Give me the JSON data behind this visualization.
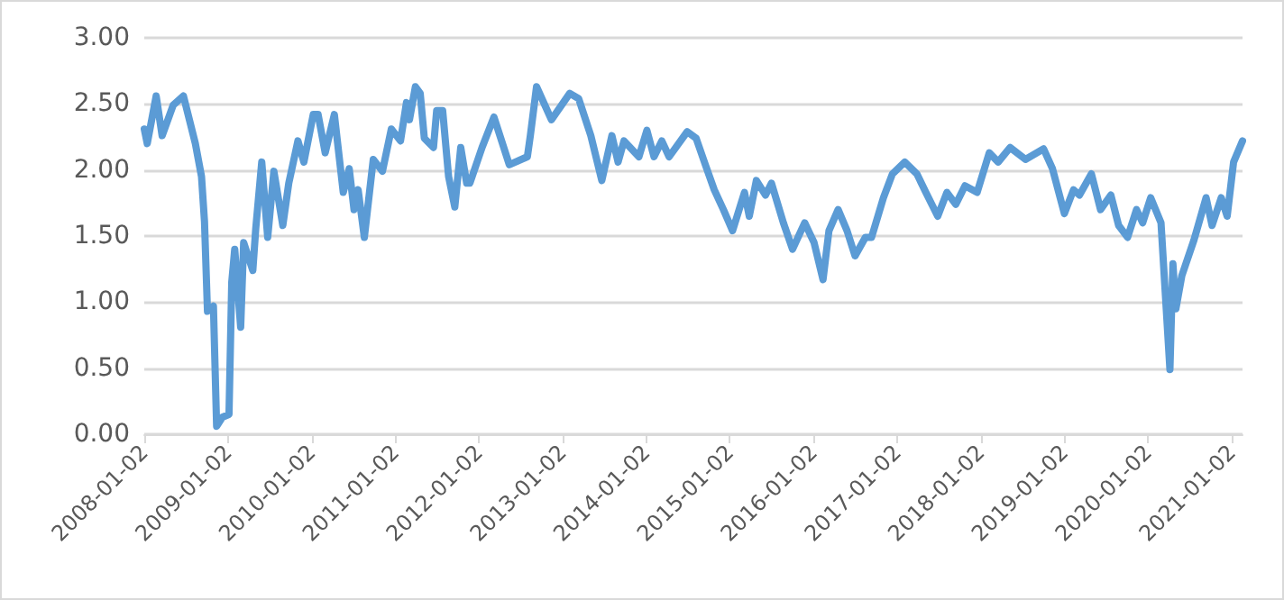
{
  "chart_data": {
    "type": "line",
    "color": "#5b9bd5",
    "line_style": "solid",
    "marker": "none",
    "grid": "y",
    "x": [
      "2008-01-02",
      "2008-01-15",
      "2008-02-23",
      "2008-03-20",
      "2008-05-07",
      "2008-06-21",
      "2008-08-12",
      "2008-09-08",
      "2008-09-21",
      "2008-10-04",
      "2008-10-30",
      "2008-11-13",
      "2008-12-09",
      "2009-01-06",
      "2009-01-18",
      "2009-01-31",
      "2009-02-26",
      "2009-03-11",
      "2009-04-20",
      "2009-05-03",
      "2009-05-29",
      "2009-06-24",
      "2009-07-21",
      "2009-08-29",
      "2009-09-24",
      "2009-11-03",
      "2009-11-29",
      "2010-01-09",
      "2010-01-30",
      "2010-03-02",
      "2010-04-11",
      "2010-05-20",
      "2010-06-15",
      "2010-07-06",
      "2010-07-24",
      "2010-08-20",
      "2010-09-28",
      "2010-11-07",
      "2010-12-16",
      "2011-01-25",
      "2011-02-20",
      "2011-03-05",
      "2011-03-31",
      "2011-04-21",
      "2011-05-09",
      "2011-06-18",
      "2011-07-02",
      "2011-07-28",
      "2011-08-23",
      "2011-09-19",
      "2011-10-15",
      "2011-11-10",
      "2011-11-24",
      "2012-01-16",
      "2012-03-08",
      "2012-05-14",
      "2012-08-01",
      "2012-08-14",
      "2012-09-10",
      "2012-11-14",
      "2013-02-02",
      "2013-03-13",
      "2013-05-05",
      "2013-06-22",
      "2013-08-05",
      "2013-09-01",
      "2013-09-27",
      "2013-12-01",
      "2014-01-05",
      "2014-02-05",
      "2014-03-11",
      "2014-04-12",
      "2014-06-30",
      "2014-08-08",
      "2014-09-17",
      "2014-10-26",
      "2014-12-05",
      "2015-01-14",
      "2015-03-07",
      "2015-03-28",
      "2015-04-28",
      "2015-06-07",
      "2015-07-03",
      "2015-08-24",
      "2015-10-03",
      "2015-11-25",
      "2016-01-05",
      "2016-02-13",
      "2016-03-10",
      "2016-04-19",
      "2016-05-28",
      "2016-07-02",
      "2016-08-16",
      "2016-09-12",
      "2016-11-03",
      "2016-12-12",
      "2017-02-04",
      "2017-03-29",
      "2017-05-07",
      "2017-06-28",
      "2017-08-07",
      "2017-09-15",
      "2017-10-25",
      "2017-12-17",
      "2018-02-08",
      "2018-03-19",
      "2018-05-10",
      "2018-07-16",
      "2018-10-03",
      "2018-11-11",
      "2019-01-02",
      "2019-02-11",
      "2019-03-09",
      "2019-04-30",
      "2019-06-09",
      "2019-07-24",
      "2019-08-27",
      "2019-10-05",
      "2019-11-13",
      "2019-12-10",
      "2020-01-14",
      "2020-02-28",
      "2020-04-07",
      "2020-04-20",
      "2020-05-03",
      "2020-05-29",
      "2020-07-21",
      "2020-09-12",
      "2020-10-08",
      "2020-11-17",
      "2020-12-13",
      "2021-01-10",
      "2021-02-18"
    ],
    "values": [
      2.31,
      2.2,
      2.56,
      2.26,
      2.49,
      2.56,
      2.2,
      1.95,
      1.61,
      0.93,
      0.97,
      0.06,
      0.13,
      0.15,
      1.15,
      1.4,
      0.81,
      1.45,
      1.24,
      1.56,
      2.06,
      1.49,
      1.99,
      1.58,
      1.9,
      2.22,
      2.06,
      2.42,
      2.42,
      2.13,
      2.42,
      1.83,
      2.01,
      1.7,
      1.85,
      1.49,
      2.08,
      1.99,
      2.31,
      2.22,
      2.51,
      2.38,
      2.63,
      2.58,
      2.24,
      2.17,
      2.45,
      2.45,
      1.95,
      1.72,
      2.17,
      1.9,
      1.9,
      2.17,
      2.4,
      2.04,
      2.1,
      2.26,
      2.63,
      2.38,
      2.58,
      2.54,
      2.26,
      1.92,
      2.26,
      2.06,
      2.22,
      2.1,
      2.3,
      2.1,
      2.22,
      2.1,
      2.29,
      2.24,
      2.04,
      1.85,
      1.7,
      1.54,
      1.83,
      1.65,
      1.92,
      1.81,
      1.9,
      1.6,
      1.4,
      1.6,
      1.45,
      1.17,
      1.54,
      1.7,
      1.54,
      1.35,
      1.49,
      1.49,
      1.79,
      1.97,
      2.06,
      1.97,
      1.83,
      1.65,
      1.83,
      1.74,
      1.88,
      1.83,
      2.13,
      2.06,
      2.17,
      2.08,
      2.16,
      2.01,
      1.67,
      1.85,
      1.81,
      1.97,
      1.7,
      1.81,
      1.58,
      1.49,
      1.7,
      1.6,
      1.79,
      1.6,
      0.49,
      1.29,
      0.95,
      1.2,
      1.47,
      1.79,
      1.58,
      1.79,
      1.65,
      2.06,
      2.22
    ],
    "xlim": [
      "2008-01-02",
      "2021-02-18"
    ],
    "xticks": [
      "2008-01-02",
      "2009-01-02",
      "2010-01-02",
      "2011-01-02",
      "2012-01-02",
      "2013-01-02",
      "2014-01-02",
      "2015-01-02",
      "2016-01-02",
      "2017-01-02",
      "2018-01-02",
      "2019-01-02",
      "2020-01-02",
      "2021-01-02"
    ],
    "ylim": [
      0,
      3
    ],
    "yticks": [
      {
        "value": 0,
        "label": "0.00"
      },
      {
        "value": 0.5,
        "label": "0.50"
      },
      {
        "value": 1,
        "label": "1.00"
      },
      {
        "value": 1.5,
        "label": "1.50"
      },
      {
        "value": 2,
        "label": "2.00"
      },
      {
        "value": 2.5,
        "label": "2.50"
      },
      {
        "value": 3,
        "label": "3.00"
      }
    ]
  }
}
